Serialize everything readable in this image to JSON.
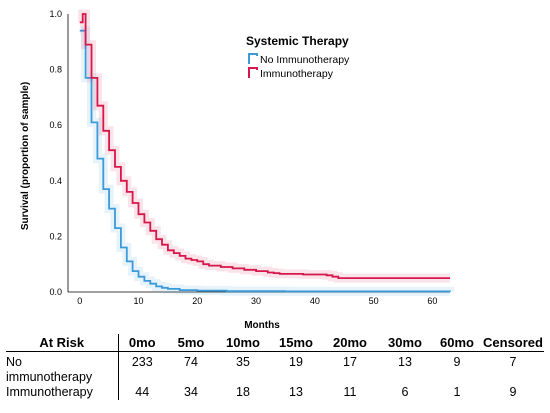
{
  "chart_data": {
    "type": "line",
    "xlabel": "Months",
    "ylabel": "Survival (proportion of sample)",
    "xlim": [
      -2,
      63
    ],
    "ylim": [
      0,
      1.0
    ],
    "xticks": [
      0,
      10,
      20,
      30,
      40,
      50,
      60
    ],
    "yticks": [
      0.0,
      0.2,
      0.4,
      0.6,
      0.8,
      1.0
    ],
    "ytick_labels": [
      "0.0",
      "0.2",
      "0.4",
      "0.6",
      "0.8",
      "1.0"
    ],
    "legend_title": "Systemic Therapy",
    "legend_position": "top-right",
    "series": [
      {
        "name": "No Immunotherapy",
        "color": "#3b9ad9",
        "x": [
          0,
          1,
          2,
          3,
          4,
          5,
          6,
          7,
          8,
          9,
          10,
          11,
          12,
          13,
          14,
          15,
          17,
          20,
          25,
          35,
          63
        ],
        "y": [
          0.94,
          0.77,
          0.61,
          0.48,
          0.37,
          0.3,
          0.23,
          0.16,
          0.11,
          0.075,
          0.055,
          0.04,
          0.03,
          0.02,
          0.015,
          0.011,
          0.007,
          0.005,
          0.003,
          0.002,
          0.001
        ]
      },
      {
        "name": "Immunotherapy",
        "color": "#d6174b",
        "x": [
          0,
          0.5,
          1,
          2,
          3,
          4,
          5,
          6,
          7,
          8,
          9,
          10,
          11,
          12,
          13,
          14,
          15,
          16,
          17,
          18,
          19,
          20,
          21,
          22,
          24,
          26,
          28,
          30,
          32,
          33,
          34,
          38,
          42,
          43,
          44,
          63
        ],
        "y": [
          0.97,
          1.0,
          0.89,
          0.77,
          0.67,
          0.58,
          0.51,
          0.45,
          0.4,
          0.36,
          0.32,
          0.28,
          0.25,
          0.22,
          0.19,
          0.17,
          0.15,
          0.14,
          0.13,
          0.12,
          0.115,
          0.11,
          0.1,
          0.095,
          0.09,
          0.085,
          0.08,
          0.075,
          0.07,
          0.068,
          0.065,
          0.063,
          0.06,
          0.055,
          0.05,
          0.05
        ]
      }
    ]
  },
  "risk_table": {
    "headers": [
      "At Risk",
      "0mo",
      "5mo",
      "10mo",
      "15mo",
      "20mo",
      "30mo",
      "60mo",
      "Censored"
    ],
    "rows": [
      {
        "label_line1": "No",
        "label_line2": "immunotherapy",
        "values": [
          "233",
          "74",
          "35",
          "19",
          "17",
          "13",
          "9",
          "7"
        ]
      },
      {
        "label_line1": "Immunotherapy",
        "label_line2": "",
        "values": [
          "44",
          "34",
          "18",
          "13",
          "11",
          "6",
          "1",
          "9"
        ]
      }
    ]
  }
}
